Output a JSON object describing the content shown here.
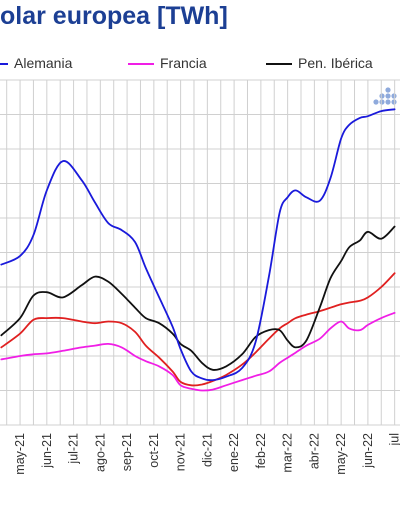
{
  "title": "olar europea [TWh]",
  "colors": {
    "title": "#1c3f94",
    "grid": "#d0d0d0",
    "axis_text": "#333333"
  },
  "legend": [
    {
      "label": "Alemania",
      "color": "#1a1adb"
    },
    {
      "label": "Francia",
      "color": "#f01ee6"
    },
    {
      "label": "Pen. Ibérica",
      "color": "#111111"
    }
  ],
  "logo": {
    "name": "dots-logo-icon",
    "color": "#8faadc"
  },
  "chart_data": {
    "type": "line",
    "title": "olar europea [TWh]",
    "xlabel": "",
    "ylabel": "",
    "grid": true,
    "legend_position": "top",
    "categories": [
      "may-21",
      "jun-21",
      "jul-21",
      "ago-21",
      "sep-21",
      "oct-21",
      "nov-21",
      "dic-21",
      "ene-22",
      "feb-22",
      "mar-22",
      "abr-22",
      "may-22",
      "jun-22",
      "jul"
    ],
    "series": [
      {
        "name": "Alemania",
        "color": "#1a1adb",
        "x": [
          -0.7,
          0.0,
          0.5,
          1.0,
          1.6,
          2.3,
          2.8,
          3.3,
          3.8,
          4.3,
          4.7,
          5.2,
          5.7,
          6.0,
          6.4,
          6.8,
          7.2,
          7.7,
          8.3,
          8.8,
          9.3,
          9.7,
          10.0,
          10.3,
          10.7,
          11.2,
          11.6,
          12.0,
          12.3,
          12.7,
          13.0,
          13.5,
          14.0
        ],
        "y": [
          9.3,
          9.8,
          11.0,
          13.6,
          15.3,
          14.2,
          12.9,
          11.7,
          11.3,
          10.6,
          9.1,
          7.4,
          5.7,
          4.4,
          3.1,
          2.7,
          2.6,
          2.8,
          3.3,
          4.8,
          8.6,
          12.3,
          13.2,
          13.6,
          13.2,
          13.0,
          14.3,
          16.6,
          17.4,
          17.8,
          17.9,
          18.2,
          18.3
        ]
      },
      {
        "name": "Francia",
        "color": "#f01ee6",
        "x": [
          -0.7,
          0.0,
          0.5,
          1.0,
          1.6,
          2.3,
          2.8,
          3.3,
          3.8,
          4.3,
          4.7,
          5.2,
          5.7,
          6.0,
          6.4,
          6.8,
          7.2,
          7.7,
          8.3,
          8.8,
          9.3,
          9.7,
          10.0,
          10.3,
          10.7,
          11.2,
          11.6,
          12.0,
          12.3,
          12.7,
          13.0,
          13.5,
          14.0
        ],
        "y": [
          3.8,
          4.0,
          4.1,
          4.15,
          4.3,
          4.5,
          4.6,
          4.7,
          4.5,
          4.0,
          3.7,
          3.4,
          2.9,
          2.3,
          2.1,
          2.0,
          2.05,
          2.3,
          2.6,
          2.85,
          3.1,
          3.6,
          3.9,
          4.2,
          4.6,
          5.0,
          5.6,
          6.0,
          5.6,
          5.5,
          5.8,
          6.2,
          6.5
        ]
      },
      {
        "name": "Pen. Ibérica",
        "color": "#111111",
        "x": [
          -0.7,
          0.0,
          0.5,
          1.0,
          1.6,
          2.3,
          2.8,
          3.3,
          3.8,
          4.3,
          4.7,
          5.2,
          5.7,
          6.0,
          6.4,
          6.8,
          7.2,
          7.7,
          8.3,
          8.8,
          9.3,
          9.7,
          10.0,
          10.3,
          10.7,
          11.2,
          11.6,
          12.0,
          12.3,
          12.7,
          13.0,
          13.5,
          14.0
        ],
        "y": [
          5.2,
          6.2,
          7.5,
          7.7,
          7.4,
          8.1,
          8.6,
          8.3,
          7.6,
          6.8,
          6.2,
          5.9,
          5.3,
          4.7,
          4.3,
          3.6,
          3.2,
          3.4,
          4.1,
          5.1,
          5.5,
          5.5,
          4.9,
          4.5,
          4.9,
          6.8,
          8.5,
          9.5,
          10.3,
          10.7,
          11.2,
          10.8,
          11.5
        ]
      },
      {
        "name": "",
        "color": "#e02020",
        "x": [
          -0.7,
          0.0,
          0.5,
          1.0,
          1.6,
          2.3,
          2.8,
          3.3,
          3.8,
          4.3,
          4.7,
          5.2,
          5.7,
          6.0,
          6.4,
          6.8,
          7.2,
          7.7,
          8.3,
          8.8,
          9.3,
          9.7,
          10.0,
          10.3,
          10.7,
          11.2,
          11.6,
          12.0,
          12.3,
          12.7,
          13.0,
          13.5,
          14.0
        ],
        "y": [
          4.5,
          5.3,
          6.1,
          6.2,
          6.2,
          6.0,
          5.9,
          6.0,
          5.9,
          5.4,
          4.6,
          3.9,
          3.1,
          2.5,
          2.3,
          2.35,
          2.55,
          2.9,
          3.5,
          4.2,
          5.0,
          5.6,
          5.9,
          6.2,
          6.4,
          6.6,
          6.8,
          7.0,
          7.1,
          7.2,
          7.4,
          8.0,
          8.8
        ]
      }
    ],
    "xlim": [
      -0.75,
      14.2
    ],
    "ylim": [
      0,
      20
    ]
  }
}
